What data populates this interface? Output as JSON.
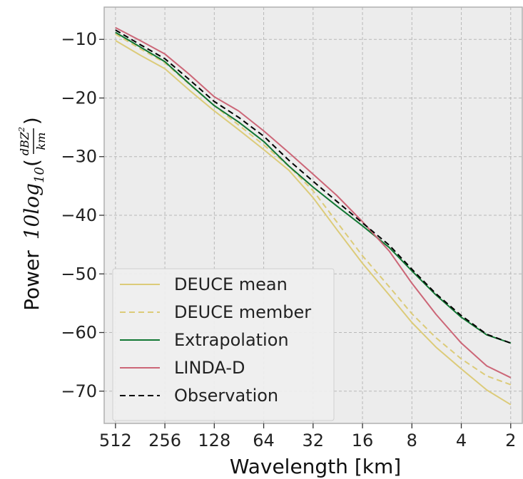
{
  "chart_data": {
    "type": "line",
    "xlabel": "Wavelength [km]",
    "ylabel": {
      "prefix": "Power",
      "math_main": "10log",
      "math_sub": "10",
      "frac_num": "dBZ",
      "frac_sup": "2",
      "frac_den": "km"
    },
    "x_scale": "log2-reversed",
    "xlim": [
      600,
      1.7
    ],
    "ylim": [
      -75.5,
      -4.5
    ],
    "x_ticks": [
      512,
      256,
      128,
      64,
      32,
      16,
      8,
      4,
      2
    ],
    "x_tick_labels": [
      "512",
      "256",
      "128",
      "64",
      "32",
      "16",
      "8",
      "4",
      "2"
    ],
    "y_ticks": [
      -10,
      -20,
      -30,
      -40,
      -50,
      -60,
      -70
    ],
    "y_tick_labels": [
      "−10",
      "−20",
      "−30",
      "−40",
      "−50",
      "−60",
      "−70"
    ],
    "grid": true,
    "legend_position": "lower-left",
    "series": [
      {
        "name": "DEUCE mean",
        "color": "#dccb79",
        "style": "solid",
        "x": [
          512,
          362,
          256,
          181,
          128,
          91,
          64,
          45,
          32,
          23,
          16,
          11,
          8,
          5.7,
          4,
          2.8,
          2
        ],
        "y": [
          -10.2,
          -12.7,
          -15.0,
          -18.7,
          -22.2,
          -25.4,
          -28.8,
          -32.3,
          -37.0,
          -42.4,
          -48.2,
          -53.6,
          -58.3,
          -62.5,
          -66.2,
          -69.8,
          -72.3
        ]
      },
      {
        "name": "DEUCE member",
        "color": "#dccb79",
        "style": "dashed",
        "x": [
          512,
          362,
          256,
          181,
          128,
          91,
          64,
          45,
          32,
          23,
          16,
          11,
          8,
          5.7,
          4,
          2.8,
          2
        ],
        "y": [
          -9.1,
          -11.6,
          -14.0,
          -17.7,
          -21.3,
          -24.6,
          -28.0,
          -31.6,
          -35.8,
          -41.1,
          -46.9,
          -52.2,
          -56.8,
          -60.9,
          -64.5,
          -67.4,
          -68.9
        ]
      },
      {
        "name": "Extrapolation",
        "color": "#117733",
        "style": "solid",
        "x": [
          512,
          362,
          256,
          181,
          128,
          91,
          64,
          45,
          32,
          23,
          16,
          11,
          8,
          5.7,
          4,
          2.8,
          2
        ],
        "y": [
          -8.8,
          -11.3,
          -13.8,
          -17.6,
          -21.3,
          -24.1,
          -27.4,
          -31.6,
          -35.2,
          -38.4,
          -41.8,
          -45.5,
          -49.5,
          -53.6,
          -57.4,
          -60.4,
          -61.8
        ]
      },
      {
        "name": "LINDA-D",
        "color": "#cc6677",
        "style": "solid",
        "x": [
          512,
          362,
          256,
          181,
          128,
          91,
          64,
          45,
          32,
          23,
          16,
          11,
          8,
          5.7,
          4,
          2.8,
          2
        ],
        "y": [
          -8.0,
          -10.2,
          -12.5,
          -16.0,
          -19.8,
          -22.2,
          -25.6,
          -29.3,
          -33.0,
          -36.6,
          -41.1,
          -46.1,
          -51.6,
          -56.9,
          -61.8,
          -65.7,
          -67.7
        ]
      },
      {
        "name": "Observation",
        "color": "#000000",
        "style": "dashed",
        "x": [
          512,
          362,
          256,
          181,
          128,
          91,
          64,
          45,
          32,
          23,
          16,
          11,
          8,
          5.7,
          4,
          2.8,
          2
        ],
        "y": [
          -8.4,
          -10.9,
          -13.3,
          -16.9,
          -20.6,
          -23.3,
          -26.5,
          -30.6,
          -34.2,
          -37.6,
          -41.3,
          -45.1,
          -49.2,
          -53.4,
          -57.1,
          -60.3,
          -61.8
        ]
      }
    ]
  }
}
